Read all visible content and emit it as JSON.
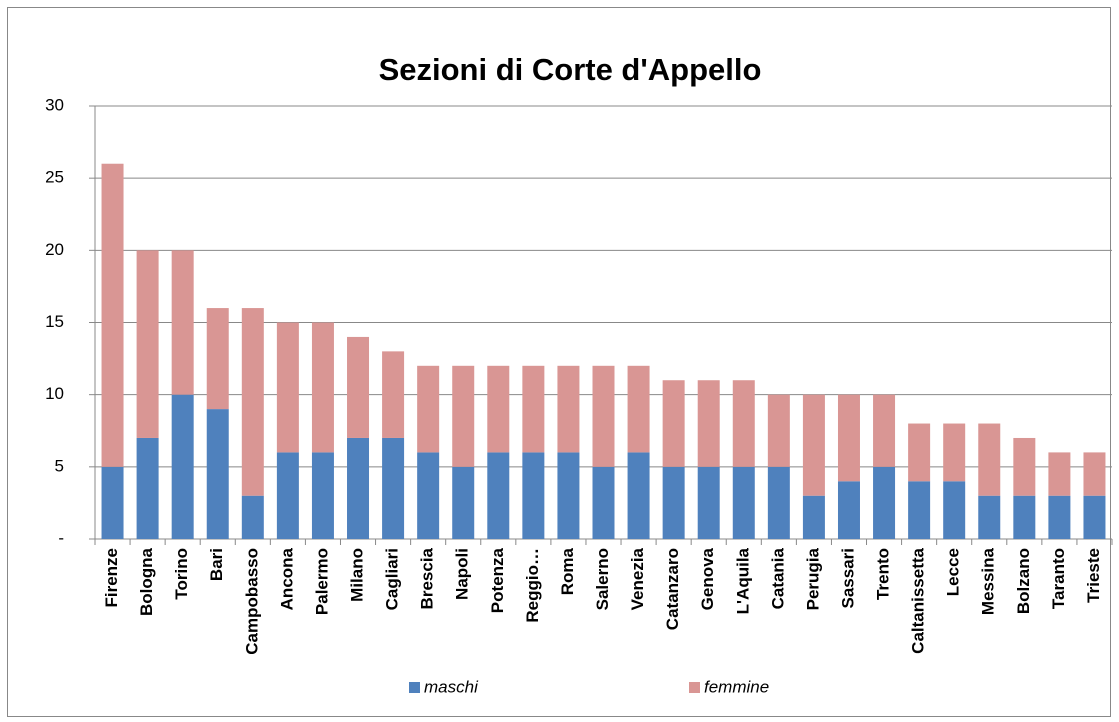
{
  "chart_data": {
    "type": "stacked_bar",
    "title": "Sezioni di Corte d'Appello",
    "categories": [
      "Firenze",
      "Bologna",
      "Torino",
      "Bari",
      "Campobasso",
      "Ancona",
      "Palermo",
      "Milano",
      "Cagliari",
      "Brescia",
      "Napoli",
      "Potenza",
      "Reggio…",
      "Roma",
      "Salerno",
      "Venezia",
      "Catanzaro",
      "Genova",
      "L'Aquila",
      "Catania",
      "Perugia",
      "Sassari",
      "Trento",
      "Caltanissetta",
      "Lecce",
      "Messina",
      "Bolzano",
      "Taranto",
      "Trieste"
    ],
    "series": [
      {
        "name": "maschi",
        "color": "#4f81bd",
        "values": [
          5,
          7,
          10,
          9,
          3,
          6,
          6,
          7,
          7,
          6,
          5,
          6,
          6,
          6,
          5,
          6,
          5,
          5,
          5,
          5,
          3,
          4,
          5,
          4,
          4,
          3,
          3,
          3,
          3
        ]
      },
      {
        "name": "femmine",
        "color": "#d99694",
        "values": [
          21,
          13,
          10,
          7,
          13,
          9,
          9,
          7,
          6,
          6,
          7,
          6,
          6,
          6,
          7,
          6,
          6,
          6,
          6,
          5,
          7,
          6,
          5,
          4,
          4,
          5,
          4,
          3,
          3
        ]
      }
    ],
    "ylim": [
      0,
      30
    ],
    "yticks": [
      {
        "value": 0,
        "label": "-"
      },
      5,
      10,
      15,
      20,
      25,
      30
    ],
    "grid": true,
    "legend": "bottom"
  }
}
